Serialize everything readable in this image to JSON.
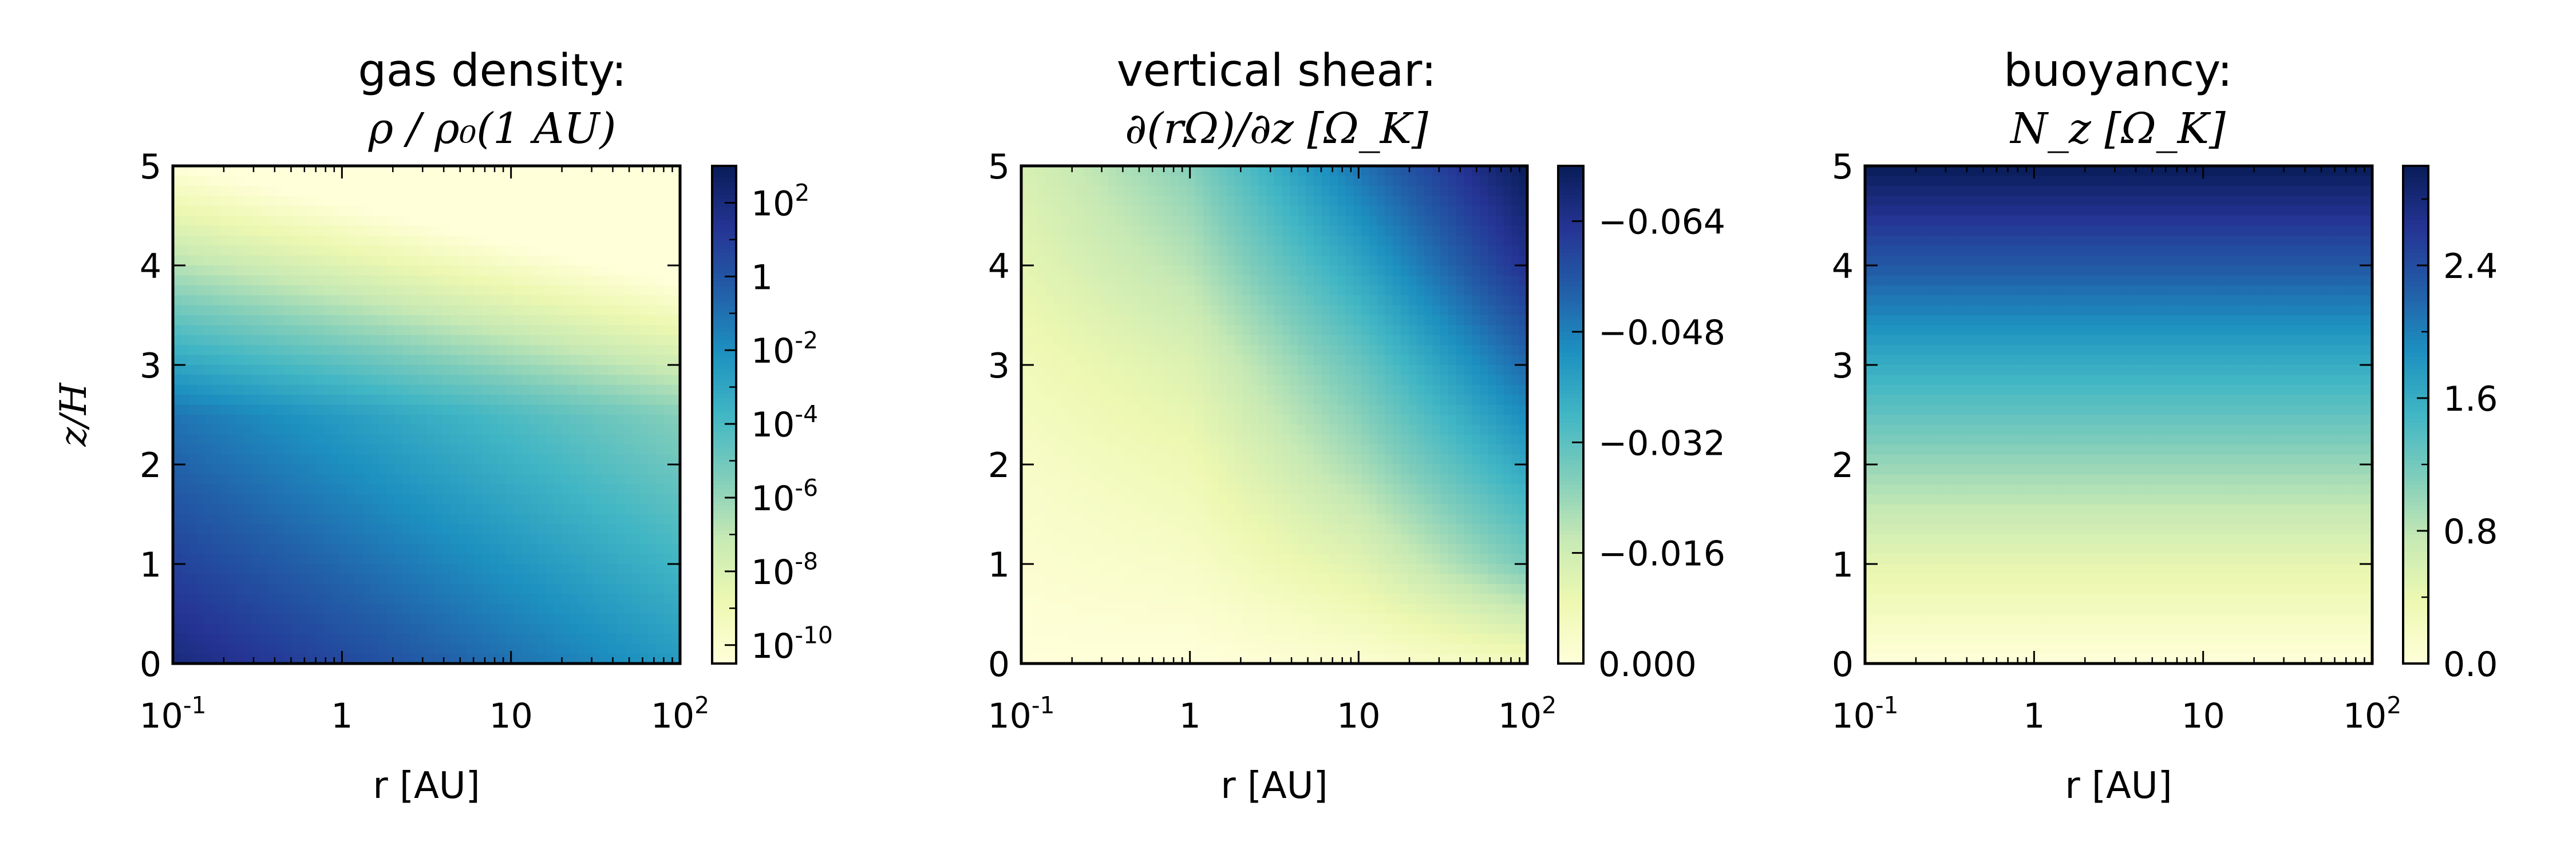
{
  "figure": {
    "colormap_stops": [
      "#ffffd9",
      "#edf8b1",
      "#c7e9b4",
      "#7fcdbb",
      "#41b6c4",
      "#1d91c0",
      "#225ea8",
      "#253494",
      "#081d58"
    ]
  },
  "chart_data": [
    {
      "type": "heatmap",
      "title": "gas density:",
      "subtitle": "ρ / ρ₀(1 AU)",
      "xlabel": "r [AU]",
      "ylabel": "z/H",
      "x_scale": "log",
      "xlim": [
        0.1,
        100
      ],
      "ylim": [
        0,
        5
      ],
      "x_ticks": [
        0.1,
        1,
        10,
        100
      ],
      "x_tick_labels": [
        {
          "base": "10",
          "exp": "-1"
        },
        {
          "base": "1",
          "exp": ""
        },
        {
          "base": "10",
          "exp": ""
        },
        {
          "base": "10",
          "exp": "2"
        }
      ],
      "y_ticks": [
        0,
        1,
        2,
        3,
        4,
        5
      ],
      "y_tick_labels": [
        "0",
        "1",
        "2",
        "3",
        "4",
        "5"
      ],
      "colorbar": {
        "scale": "log",
        "range": [
          -10.5,
          3.0
        ],
        "ticks": [
          2,
          0,
          -2,
          -4,
          -6,
          -8,
          -10
        ],
        "tick_labels": [
          {
            "base": "10",
            "exp": "2"
          },
          {
            "base": "1",
            "exp": ""
          },
          {
            "base": "10",
            "exp": "-2"
          },
          {
            "base": "10",
            "exp": "-4"
          },
          {
            "base": "10",
            "exp": "-6"
          },
          {
            "base": "10",
            "exp": "-8"
          },
          {
            "base": "10",
            "exp": "-10"
          }
        ],
        "minor_ticks": [
          1,
          -1,
          -3,
          -5,
          -7,
          -9
        ]
      },
      "field": {
        "description_values": "log10 of normalized gas density at sampled points",
        "r": [
          0.1,
          1,
          10,
          100
        ],
        "z_over_H": [
          0,
          2.5,
          5
        ],
        "values": [
          [
            2.0,
            0.5,
            -1.0,
            -2.5
          ],
          [
            -1.1,
            -2.6,
            -4.1,
            -5.6
          ],
          [
            -10.4,
            -11.9,
            -13.4,
            -14.9
          ]
        ]
      },
      "orientation": "colorbar increases upward"
    },
    {
      "type": "heatmap",
      "title": "vertical shear:",
      "subtitle": "∂(rΩ)/∂z  [Ω_K]",
      "xlabel": "r [AU]",
      "ylabel": "",
      "x_scale": "log",
      "xlim": [
        0.1,
        100
      ],
      "ylim": [
        0,
        5
      ],
      "x_ticks": [
        0.1,
        1,
        10,
        100
      ],
      "x_tick_labels": [
        {
          "base": "10",
          "exp": "-1"
        },
        {
          "base": "1",
          "exp": ""
        },
        {
          "base": "10",
          "exp": ""
        },
        {
          "base": "10",
          "exp": "2"
        }
      ],
      "y_ticks": [
        0,
        1,
        2,
        3,
        4,
        5
      ],
      "y_tick_labels": [
        "0",
        "1",
        "2",
        "3",
        "4",
        "5"
      ],
      "colorbar": {
        "scale": "linear",
        "range": [
          -0.072,
          0.0
        ],
        "ticks": [
          0.0,
          -0.016,
          -0.032,
          -0.048,
          -0.064
        ],
        "tick_labels": [
          {
            "base": "0.000",
            "exp": ""
          },
          {
            "base": "−0.016",
            "exp": ""
          },
          {
            "base": "−0.032",
            "exp": ""
          },
          {
            "base": "−0.048",
            "exp": ""
          },
          {
            "base": "−0.064",
            "exp": ""
          }
        ],
        "minor_ticks": [],
        "reversed": true
      },
      "field": {
        "r": [
          0.1,
          1,
          10,
          100
        ],
        "z_over_H": [
          0,
          1,
          2,
          3,
          4,
          5
        ],
        "values": [
          [
            0.0,
            0.0,
            -0.002,
            -0.006
          ],
          [
            -0.002,
            -0.004,
            -0.012,
            -0.028
          ],
          [
            -0.004,
            -0.008,
            -0.022,
            -0.04
          ],
          [
            -0.007,
            -0.013,
            -0.03,
            -0.052
          ],
          [
            -0.011,
            -0.02,
            -0.04,
            -0.064
          ],
          [
            -0.014,
            -0.026,
            -0.05,
            -0.072
          ]
        ]
      }
    },
    {
      "type": "heatmap",
      "title": "buoyancy:",
      "subtitle": "N_z  [Ω_K]",
      "xlabel": "r [AU]",
      "ylabel": "",
      "x_scale": "log",
      "xlim": [
        0.1,
        100
      ],
      "ylim": [
        0,
        5
      ],
      "x_ticks": [
        0.1,
        1,
        10,
        100
      ],
      "x_tick_labels": [
        {
          "base": "10",
          "exp": "-1"
        },
        {
          "base": "1",
          "exp": ""
        },
        {
          "base": "10",
          "exp": ""
        },
        {
          "base": "10",
          "exp": "2"
        }
      ],
      "y_ticks": [
        0,
        1,
        2,
        3,
        4,
        5
      ],
      "y_tick_labels": [
        "0",
        "1",
        "2",
        "3",
        "4",
        "5"
      ],
      "colorbar": {
        "scale": "linear",
        "range": [
          0.0,
          3.0
        ],
        "ticks": [
          2.4,
          1.6,
          0.8,
          0.0
        ],
        "tick_labels": [
          {
            "base": "2.4",
            "exp": ""
          },
          {
            "base": "1.6",
            "exp": ""
          },
          {
            "base": "0.8",
            "exp": ""
          },
          {
            "base": "0.0",
            "exp": ""
          }
        ],
        "minor_ticks": [
          2.8,
          2.0,
          1.2,
          0.4
        ]
      },
      "field": {
        "r": [
          0.1,
          1,
          10,
          100
        ],
        "z_over_H": [
          0,
          1,
          2,
          3,
          4,
          5
        ],
        "values": [
          [
            0.0,
            0.0,
            0.0,
            0.0
          ],
          [
            0.45,
            0.45,
            0.45,
            0.45
          ],
          [
            1.0,
            1.0,
            1.0,
            1.0
          ],
          [
            1.6,
            1.6,
            1.6,
            1.6
          ],
          [
            2.3,
            2.3,
            2.3,
            2.3
          ],
          [
            3.0,
            3.0,
            3.0,
            3.0
          ]
        ]
      }
    }
  ]
}
